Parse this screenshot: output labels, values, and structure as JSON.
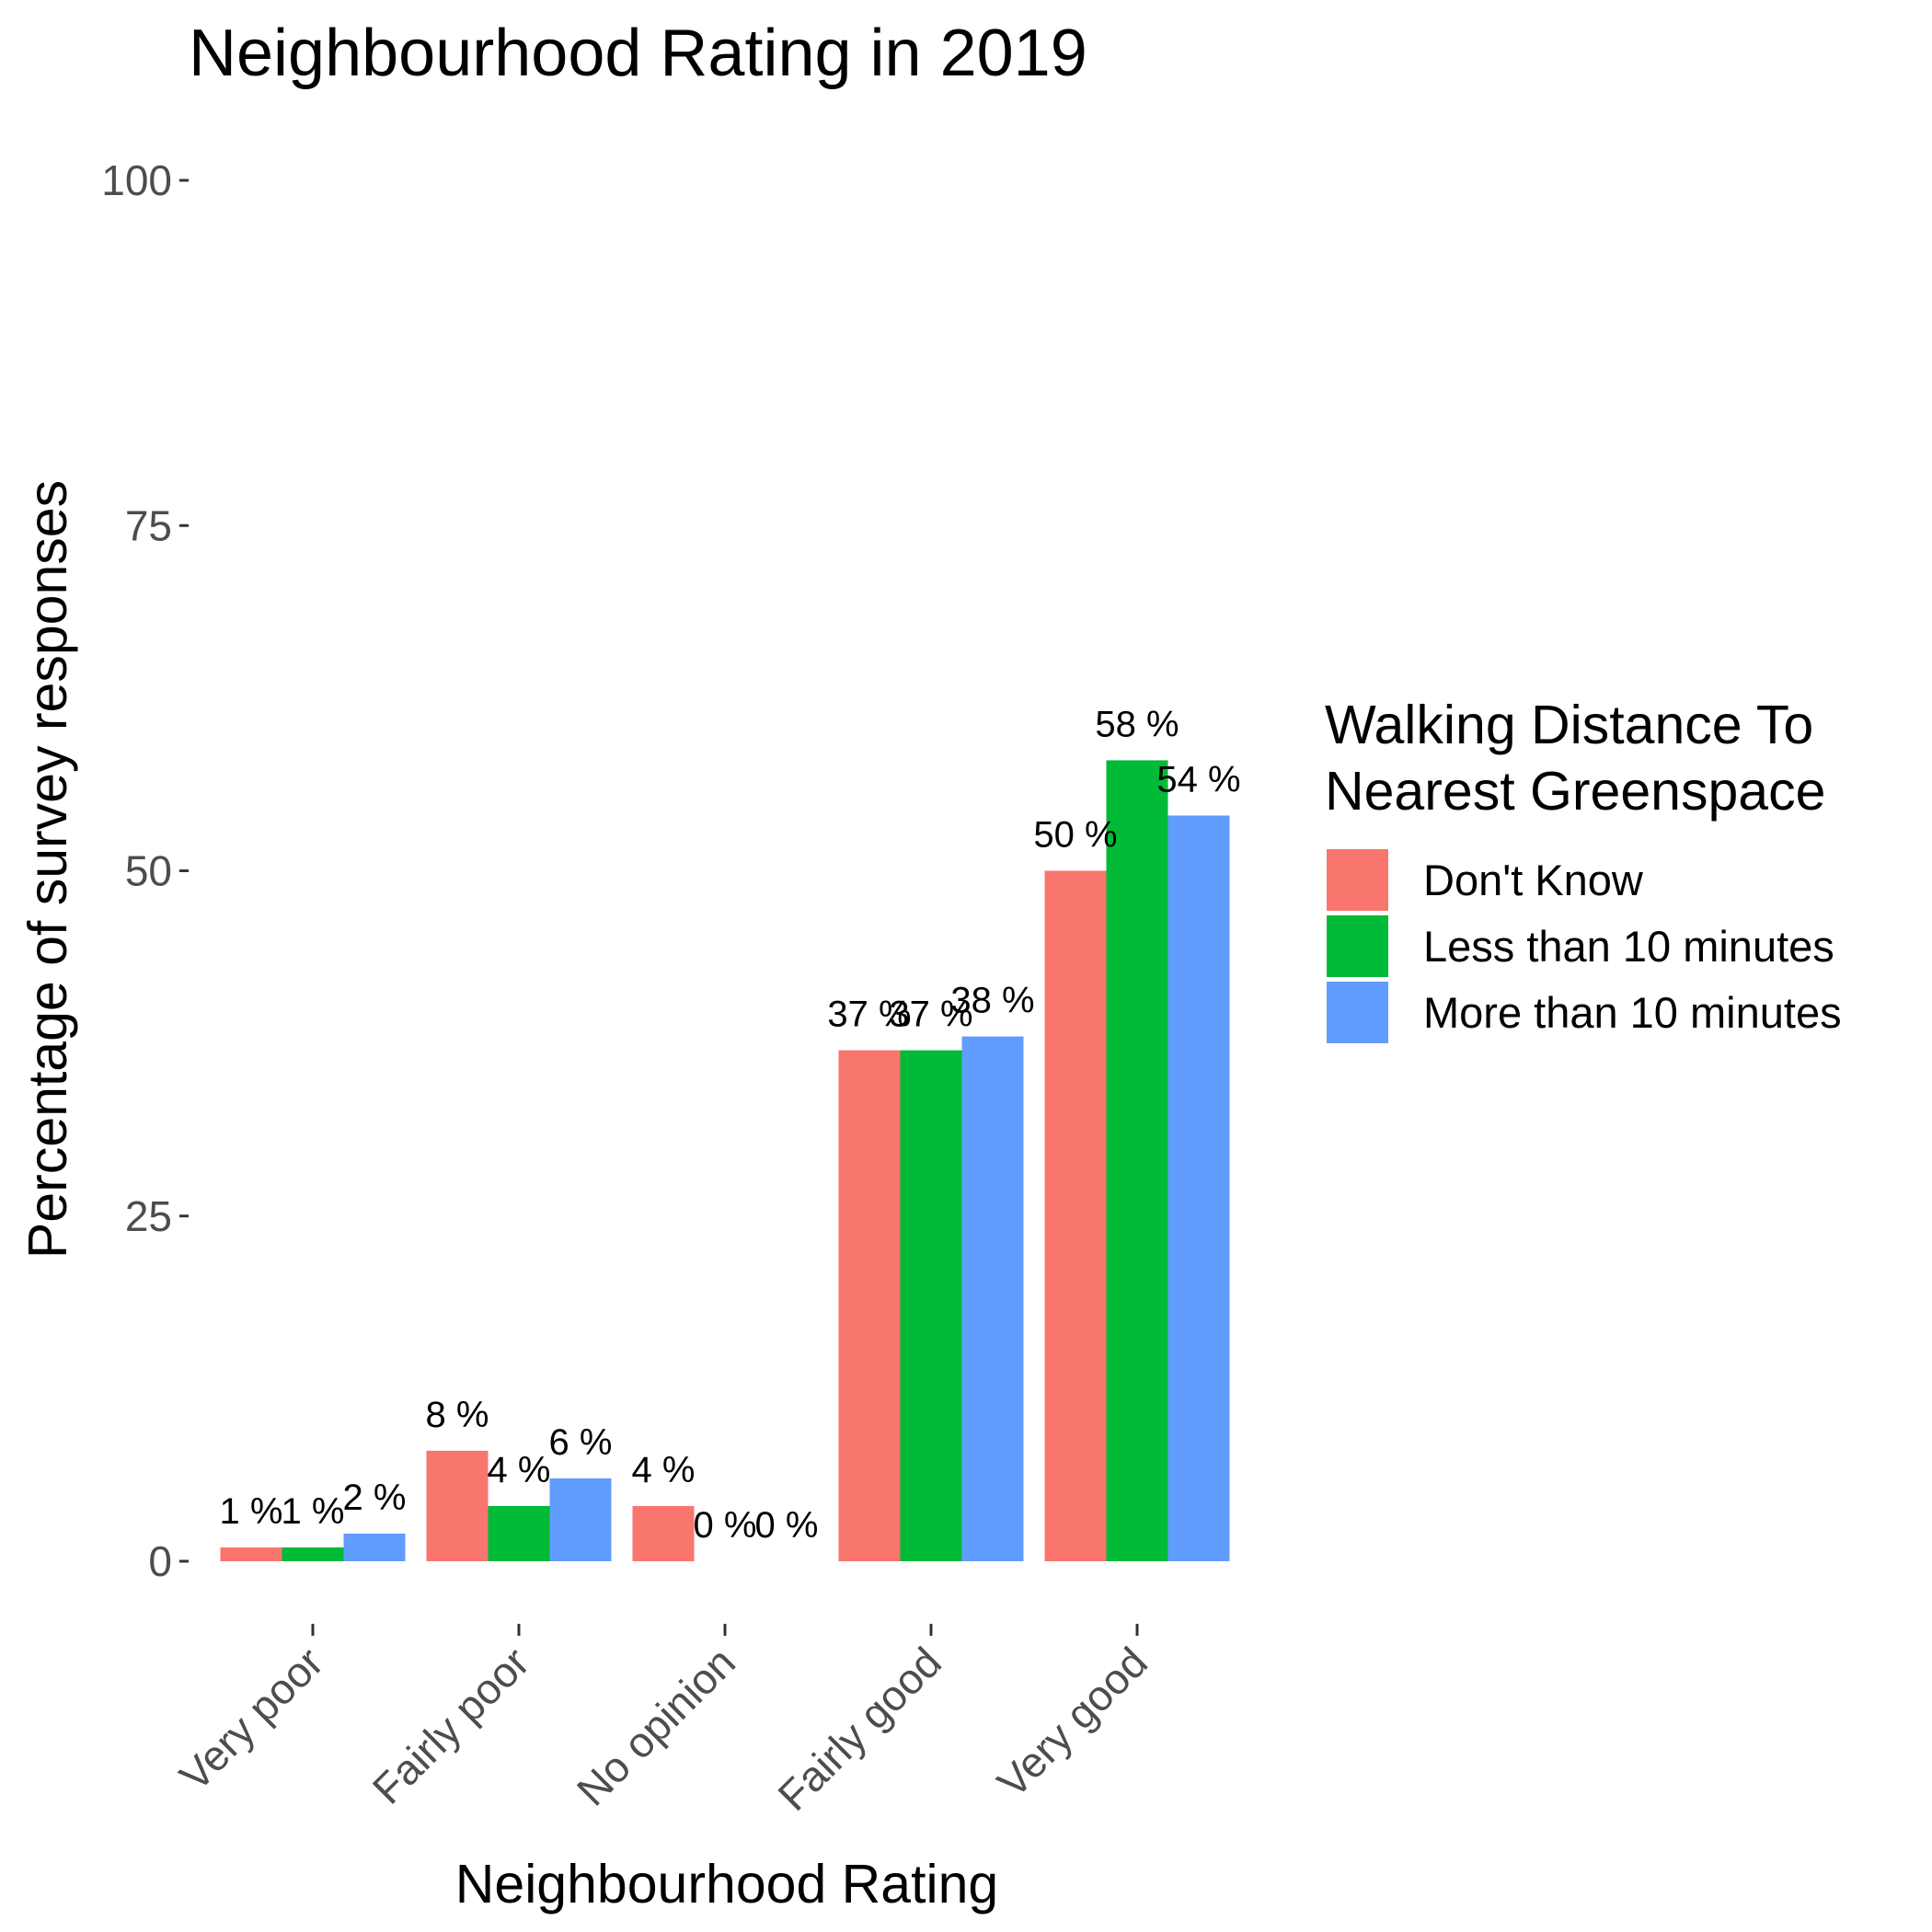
{
  "chart_data": {
    "type": "bar",
    "title": "Neighbourhood Rating in 2019",
    "xlabel": "Neighbourhood Rating",
    "ylabel": "Percentage of survey responses",
    "ylim": [
      0,
      100
    ],
    "yticks": [
      "0",
      "25",
      "50",
      "75",
      "100"
    ],
    "categories": [
      "Very poor",
      "Fairly poor",
      "No opinion",
      "Fairly good",
      "Very good"
    ],
    "grid": false,
    "legend": {
      "title_lines": [
        "Walking Distance To",
        "Nearest Greenspace"
      ],
      "placement": "right"
    },
    "series": [
      {
        "name": "Don't Know",
        "color": "#F8766D",
        "values": [
          1,
          8,
          4,
          37,
          50
        ],
        "labels": [
          "1 %",
          "8 %",
          "4 %",
          "37 %",
          "50 %"
        ]
      },
      {
        "name": "Less than 10 minutes",
        "color": "#00BA38",
        "values": [
          1,
          4,
          0,
          37,
          58
        ],
        "labels": [
          "1 %",
          "4 %",
          "0 %",
          "37 %",
          "58 %"
        ]
      },
      {
        "name": "More than 10 minutes",
        "color": "#619CFF",
        "values": [
          2,
          6,
          0,
          38,
          54
        ],
        "labels": [
          "2 %",
          "6 %",
          "0 %",
          "38 %",
          "54 %"
        ]
      }
    ]
  }
}
